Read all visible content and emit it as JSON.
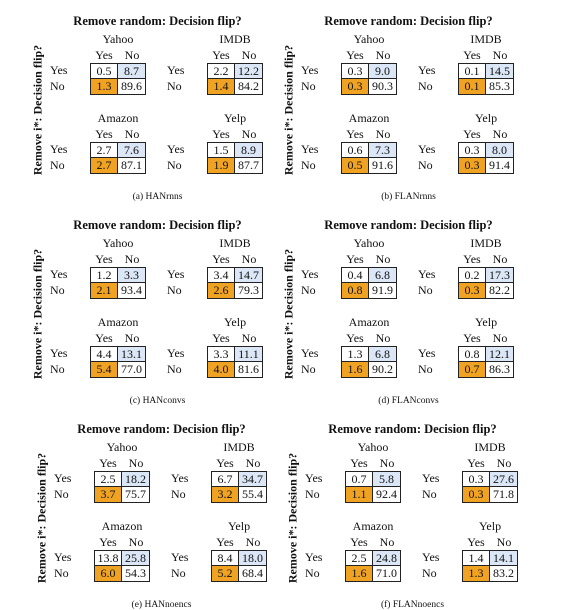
{
  "panel_title": "Remove random: Decision flip?",
  "side_label": "Remove i*: Decision flip?",
  "col_headers": [
    "Yes",
    "No"
  ],
  "row_headers": [
    "Yes",
    "No"
  ],
  "panels": [
    {
      "caption": "(a) HANrnns",
      "matrices": [
        {
          "name": "Yahoo",
          "cells": [
            "0.5",
            "8.7",
            "1.3",
            "89.6"
          ]
        },
        {
          "name": "IMDB",
          "cells": [
            "2.2",
            "12.2",
            "1.4",
            "84.2"
          ]
        },
        {
          "name": "Amazon",
          "cells": [
            "2.7",
            "7.6",
            "2.7",
            "87.1"
          ]
        },
        {
          "name": "Yelp",
          "cells": [
            "1.5",
            "8.9",
            "1.9",
            "87.7"
          ]
        }
      ]
    },
    {
      "caption": "(b) FLANrnns",
      "matrices": [
        {
          "name": "Yahoo",
          "cells": [
            "0.3",
            "9.0",
            "0.3",
            "90.3"
          ]
        },
        {
          "name": "IMDB",
          "cells": [
            "0.1",
            "14.5",
            "0.1",
            "85.3"
          ]
        },
        {
          "name": "Amazon",
          "cells": [
            "0.6",
            "7.3",
            "0.5",
            "91.6"
          ]
        },
        {
          "name": "Yelp",
          "cells": [
            "0.3",
            "8.0",
            "0.3",
            "91.4"
          ]
        }
      ]
    },
    {
      "caption": "(c) HANconvs",
      "matrices": [
        {
          "name": "Yahoo",
          "cells": [
            "1.2",
            "3.3",
            "2.1",
            "93.4"
          ]
        },
        {
          "name": "IMDB",
          "cells": [
            "3.4",
            "14.7",
            "2.6",
            "79.3"
          ]
        },
        {
          "name": "Amazon",
          "cells": [
            "4.4",
            "13.1",
            "5.4",
            "77.0"
          ]
        },
        {
          "name": "Yelp",
          "cells": [
            "3.3",
            "11.1",
            "4.0",
            "81.6"
          ]
        }
      ]
    },
    {
      "caption": "(d) FLANconvs",
      "matrices": [
        {
          "name": "Yahoo",
          "cells": [
            "0.4",
            "6.8",
            "0.8",
            "91.9"
          ]
        },
        {
          "name": "IMDB",
          "cells": [
            "0.2",
            "17.3",
            "0.3",
            "82.2"
          ]
        },
        {
          "name": "Amazon",
          "cells": [
            "1.3",
            "6.8",
            "1.6",
            "90.2"
          ]
        },
        {
          "name": "Yelp",
          "cells": [
            "0.8",
            "12.1",
            "0.7",
            "86.3"
          ]
        }
      ]
    },
    {
      "caption": "(e) HANnoencs",
      "matrices": [
        {
          "name": "Yahoo",
          "cells": [
            "2.5",
            "18.2",
            "3.7",
            "75.7"
          ]
        },
        {
          "name": "IMDB",
          "cells": [
            "6.7",
            "34.7",
            "3.2",
            "55.4"
          ]
        },
        {
          "name": "Amazon",
          "cells": [
            "13.8",
            "25.8",
            "6.0",
            "54.3"
          ]
        },
        {
          "name": "Yelp",
          "cells": [
            "8.4",
            "18.0",
            "5.2",
            "68.4"
          ]
        }
      ]
    },
    {
      "caption": "(f) FLANnoencs",
      "matrices": [
        {
          "name": "Yahoo",
          "cells": [
            "0.7",
            "5.8",
            "1.1",
            "92.4"
          ]
        },
        {
          "name": "IMDB",
          "cells": [
            "0.3",
            "27.6",
            "0.3",
            "71.8"
          ]
        },
        {
          "name": "Amazon",
          "cells": [
            "2.5",
            "24.8",
            "1.6",
            "71.0"
          ]
        },
        {
          "name": "Yelp",
          "cells": [
            "1.4",
            "14.1",
            "1.3",
            "83.2"
          ]
        }
      ]
    }
  ],
  "colors": {
    "top_left": "#ffffff",
    "top_right": "#dbe7f7",
    "bottom_left": "#f0a323",
    "bottom_right": "#ffffff"
  }
}
